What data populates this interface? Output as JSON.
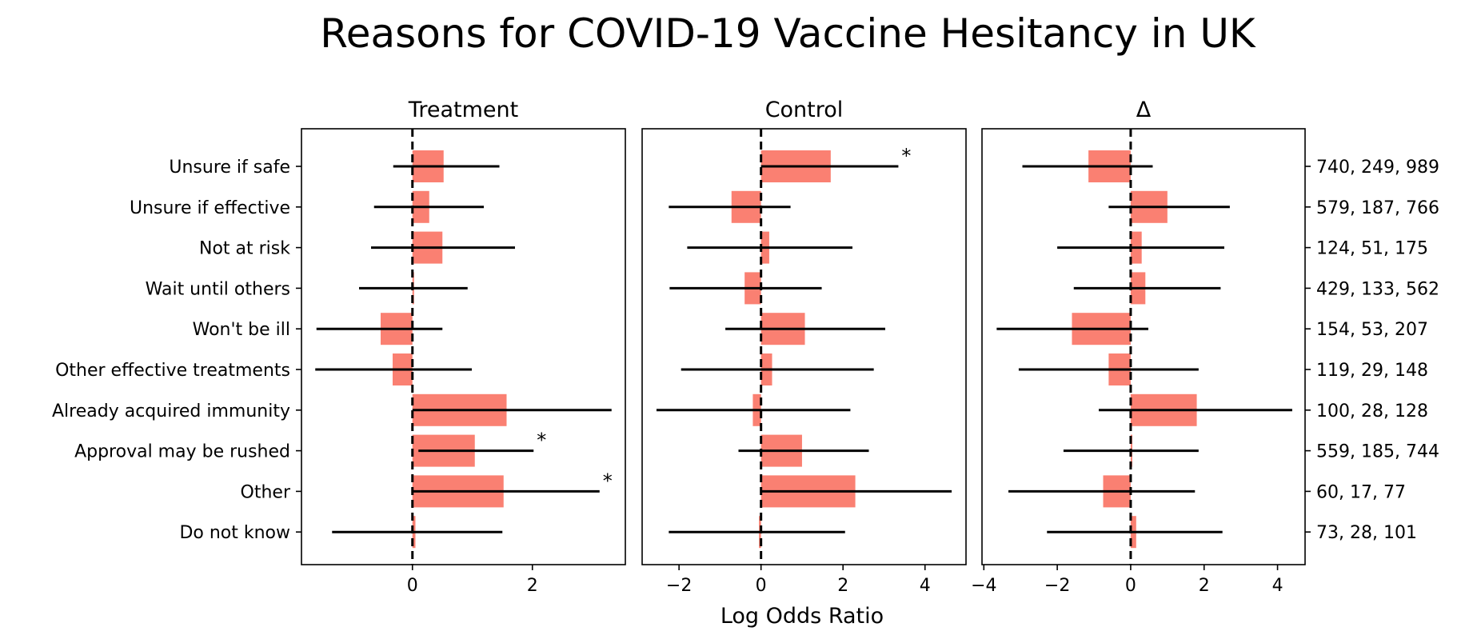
{
  "chart_data": {
    "type": "bar",
    "title": "Reasons for COVID-19 Vaccine Hesitancy in UK",
    "xlabel": "Log Odds Ratio",
    "categories": [
      "Unsure if safe",
      "Unsure if effective",
      "Not at risk",
      "Wait until others",
      "Won't be ill",
      "Other effective treatments",
      "Already acquired immunity",
      "Approval may be rushed",
      "Other",
      "Do not know"
    ],
    "counts": [
      "740, 249, 989",
      "579, 187, 766",
      "124, 51, 175",
      "429, 133, 562",
      "154, 53, 207",
      "119, 29, 148",
      "100, 28, 128",
      "559, 185, 744",
      "60, 17, 77",
      "73, 28, 101"
    ],
    "bar_color": "#fa8072",
    "reference_line": 0,
    "significance_marker": "*",
    "panels": [
      {
        "title": "Treatment",
        "xlim": [
          -1.85,
          3.55
        ],
        "xticks": [
          0,
          2
        ],
        "values": [
          0.52,
          0.28,
          0.5,
          0.0,
          -0.53,
          -0.33,
          1.57,
          1.04,
          1.52,
          0.05
        ],
        "ci": [
          [
            -0.32,
            1.45
          ],
          [
            -0.64,
            1.19
          ],
          [
            -0.69,
            1.71
          ],
          [
            -0.89,
            0.92
          ],
          [
            -1.6,
            0.5
          ],
          [
            -1.62,
            0.99
          ],
          [
            0.0,
            3.32
          ],
          [
            0.1,
            2.02
          ],
          [
            0.0,
            3.12
          ],
          [
            -1.34,
            1.5
          ]
        ],
        "significant": [
          false,
          false,
          false,
          false,
          false,
          false,
          false,
          true,
          true,
          false
        ]
      },
      {
        "title": "Control",
        "xlim": [
          -2.9,
          5.0
        ],
        "xticks": [
          -2,
          0,
          2,
          4
        ],
        "values": [
          1.7,
          -0.72,
          0.2,
          -0.4,
          1.07,
          0.27,
          -0.2,
          1.0,
          2.3,
          -0.05
        ],
        "ci": [
          [
            0.0,
            3.35
          ],
          [
            -2.25,
            0.72
          ],
          [
            -1.8,
            2.23
          ],
          [
            -2.23,
            1.48
          ],
          [
            -0.87,
            3.03
          ],
          [
            -1.95,
            2.75
          ],
          [
            -2.55,
            2.18
          ],
          [
            -0.55,
            2.63
          ],
          [
            0.0,
            4.65
          ],
          [
            -2.25,
            2.05
          ]
        ],
        "significant": [
          true,
          false,
          false,
          false,
          false,
          false,
          false,
          false,
          false,
          false
        ]
      },
      {
        "title": "Δ",
        "xlim": [
          -4.05,
          4.75
        ],
        "xticks": [
          -4,
          -2,
          0,
          2,
          4
        ],
        "values": [
          -1.15,
          1.0,
          0.3,
          0.4,
          -1.6,
          -0.6,
          1.8,
          0.0,
          -0.75,
          0.15
        ],
        "ci": [
          [
            -2.95,
            0.6
          ],
          [
            -0.6,
            2.7
          ],
          [
            -2.0,
            2.55
          ],
          [
            -1.55,
            2.45
          ],
          [
            -3.65,
            0.48
          ],
          [
            -3.05,
            1.85
          ],
          [
            -0.87,
            4.4
          ],
          [
            -1.83,
            1.85
          ],
          [
            -3.33,
            1.75
          ],
          [
            -2.28,
            2.5
          ]
        ],
        "significant": [
          false,
          false,
          false,
          false,
          false,
          false,
          false,
          false,
          false,
          false
        ]
      }
    ]
  }
}
